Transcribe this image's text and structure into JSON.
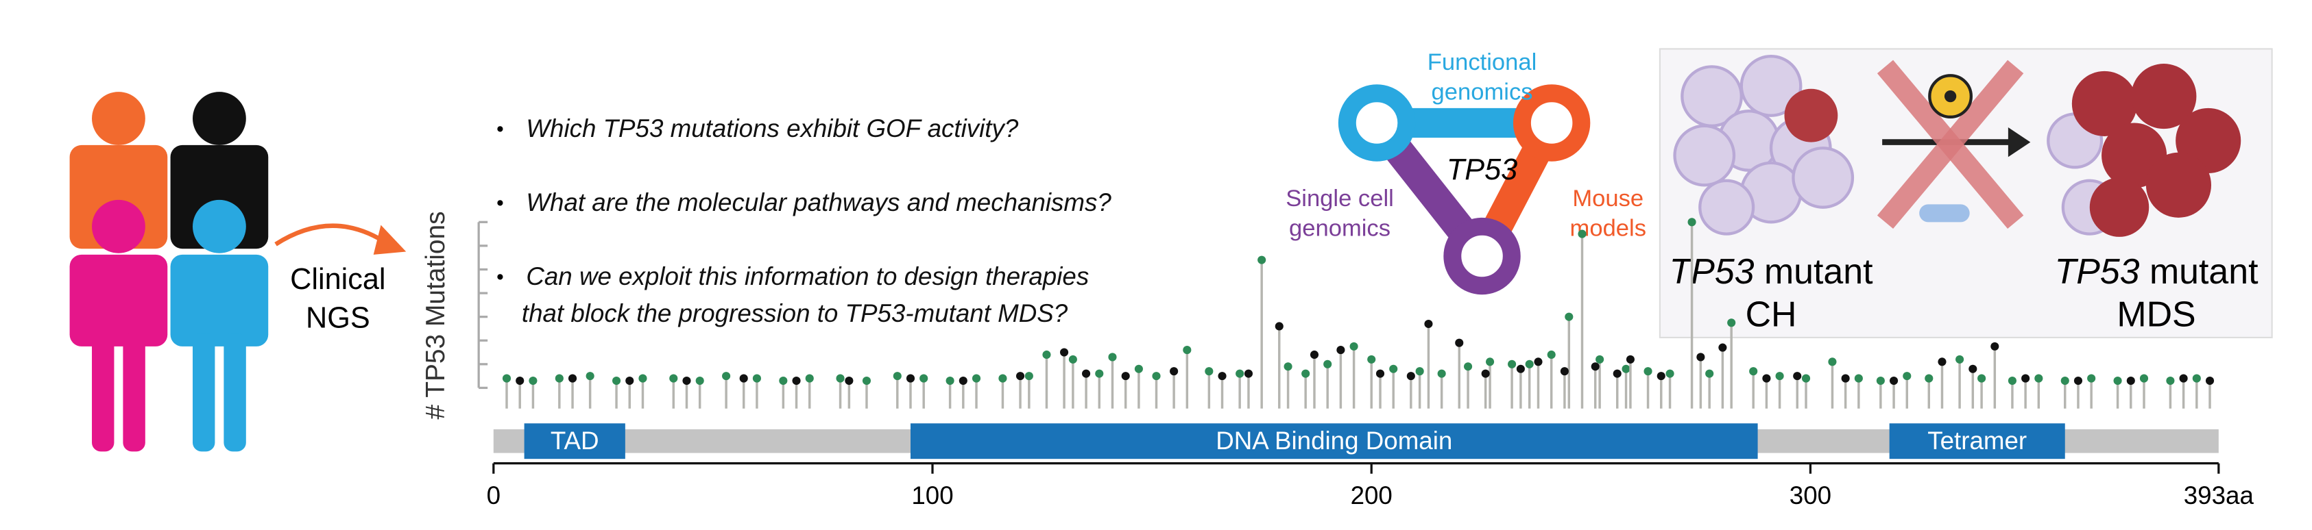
{
  "cohort": {
    "label_lines": [
      "Clinical",
      "NGS"
    ]
  },
  "questions": [
    [
      "Which TP53 mutations exhibit GOF activity?"
    ],
    [
      "What are the molecular pathways and mechanisms?"
    ],
    [
      "Can we exploit this information to design therapies",
      "that block the progression to TP53-mutant MDS?"
    ]
  ],
  "approach": {
    "center": "TP53",
    "top": [
      "Functional",
      "genomics"
    ],
    "left": [
      "Single cell",
      "genomics"
    ],
    "right": [
      "Mouse",
      "models"
    ]
  },
  "panel": {
    "left": {
      "gene": "TP53",
      "word": "mutant",
      "stage": "CH"
    },
    "right": {
      "gene": "TP53",
      "word": "mutant",
      "stage": "MDS"
    }
  },
  "chart_data": {
    "type": "lollipop",
    "ylabel": "# TP53 Mutations",
    "xlim": [
      0,
      393
    ],
    "xticks": [
      0,
      100,
      200,
      300,
      {
        "value": 393,
        "label": "393aa"
      }
    ],
    "ylim": [
      0,
      7
    ],
    "yticks": [
      0,
      1,
      2,
      3,
      4,
      5,
      6,
      7
    ],
    "series": [
      {
        "color": "#2e8b57",
        "x": [
          3,
          9,
          15,
          22,
          28,
          34,
          41,
          47,
          53,
          60,
          66,
          72,
          79,
          85,
          92,
          98,
          104,
          110,
          116,
          122,
          126,
          132,
          138,
          141,
          147,
          151,
          158,
          163,
          170,
          175,
          181,
          185,
          190,
          196,
          200,
          205,
          211,
          216,
          222,
          227,
          232,
          236,
          241,
          245,
          248,
          252,
          258,
          263,
          268,
          273,
          277,
          282,
          287,
          293,
          299,
          305,
          311,
          316,
          322,
          327,
          334,
          339,
          346,
          352,
          358,
          364,
          370,
          376,
          382,
          388
        ],
        "values": [
          0.4,
          0.3,
          0.4,
          0.5,
          0.3,
          0.4,
          0.4,
          0.3,
          0.5,
          0.4,
          0.3,
          0.4,
          0.4,
          0.3,
          0.5,
          0.4,
          0.3,
          0.4,
          0.4,
          0.5,
          1.4,
          1.2,
          0.6,
          1.3,
          0.8,
          0.5,
          1.6,
          0.7,
          0.6,
          5.4,
          0.9,
          0.6,
          1.0,
          1.75,
          1.2,
          0.8,
          0.7,
          0.6,
          0.9,
          1.1,
          1.0,
          1.0,
          1.4,
          3.0,
          6.5,
          1.2,
          0.8,
          0.7,
          0.6,
          7.0,
          0.6,
          2.75,
          0.7,
          0.5,
          0.4,
          1.1,
          0.4,
          0.3,
          0.5,
          0.4,
          1.2,
          0.4,
          0.3,
          0.4,
          0.3,
          0.4,
          0.3,
          0.4,
          0.3,
          0.4
        ]
      },
      {
        "color": "#111111",
        "x": [
          6,
          18,
          31,
          44,
          57,
          69,
          81,
          95,
          107,
          120,
          130,
          135,
          144,
          155,
          166,
          172,
          179,
          187,
          193,
          202,
          209,
          213,
          220,
          226,
          234,
          238,
          244,
          251,
          256,
          259,
          266,
          275,
          280,
          290,
          297,
          308,
          319,
          330,
          337,
          342,
          349,
          361,
          373,
          385,
          391
        ],
        "values": [
          0.3,
          0.4,
          0.3,
          0.3,
          0.4,
          0.3,
          0.3,
          0.4,
          0.3,
          0.5,
          1.5,
          0.6,
          0.5,
          0.7,
          0.5,
          0.6,
          2.6,
          1.4,
          1.6,
          0.6,
          0.5,
          2.7,
          1.9,
          0.6,
          0.8,
          1.1,
          0.7,
          0.9,
          0.6,
          1.2,
          0.5,
          1.3,
          1.7,
          0.4,
          0.5,
          0.4,
          0.3,
          1.1,
          0.8,
          1.75,
          0.4,
          0.3,
          0.3,
          0.4,
          0.3
        ]
      }
    ],
    "domains": [
      {
        "name": "TAD",
        "start": 7,
        "end": 30
      },
      {
        "name": "DNA Binding Domain",
        "start": 95,
        "end": 288
      },
      {
        "name": "Tetramer",
        "start": 318,
        "end": 358
      }
    ],
    "domain_color": "#1a73b8",
    "track_color": "#c4c4c4",
    "stem_color": "#b5b5b0"
  }
}
